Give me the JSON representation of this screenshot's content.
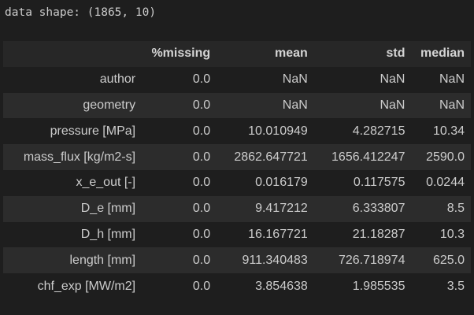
{
  "output": {
    "shape_text": "data shape: (1865, 10)"
  },
  "table": {
    "index_header": "",
    "columns": [
      "%missing",
      "mean",
      "std",
      "median"
    ],
    "rows": [
      {
        "index": "author",
        "values": [
          "0.0",
          "NaN",
          "NaN",
          "NaN"
        ]
      },
      {
        "index": "geometry",
        "values": [
          "0.0",
          "NaN",
          "NaN",
          "NaN"
        ]
      },
      {
        "index": "pressure [MPa]",
        "values": [
          "0.0",
          "10.010949",
          "4.282715",
          "10.34"
        ]
      },
      {
        "index": "mass_flux [kg/m2-s]",
        "values": [
          "0.0",
          "2862.647721",
          "1656.412247",
          "2590.0"
        ]
      },
      {
        "index": "x_e_out [-]",
        "values": [
          "0.0",
          "0.016179",
          "0.117575",
          "0.0244"
        ]
      },
      {
        "index": "D_e [mm]",
        "values": [
          "0.0",
          "9.417212",
          "6.333807",
          "8.5"
        ]
      },
      {
        "index": "D_h [mm]",
        "values": [
          "0.0",
          "16.167721",
          "21.18287",
          "10.3"
        ]
      },
      {
        "index": "length [mm]",
        "values": [
          "0.0",
          "911.340483",
          "726.718974",
          "625.0"
        ]
      },
      {
        "index": "chf_exp [MW/m2]",
        "values": [
          "0.0",
          "3.854638",
          "1.985535",
          "3.5"
        ]
      }
    ]
  }
}
